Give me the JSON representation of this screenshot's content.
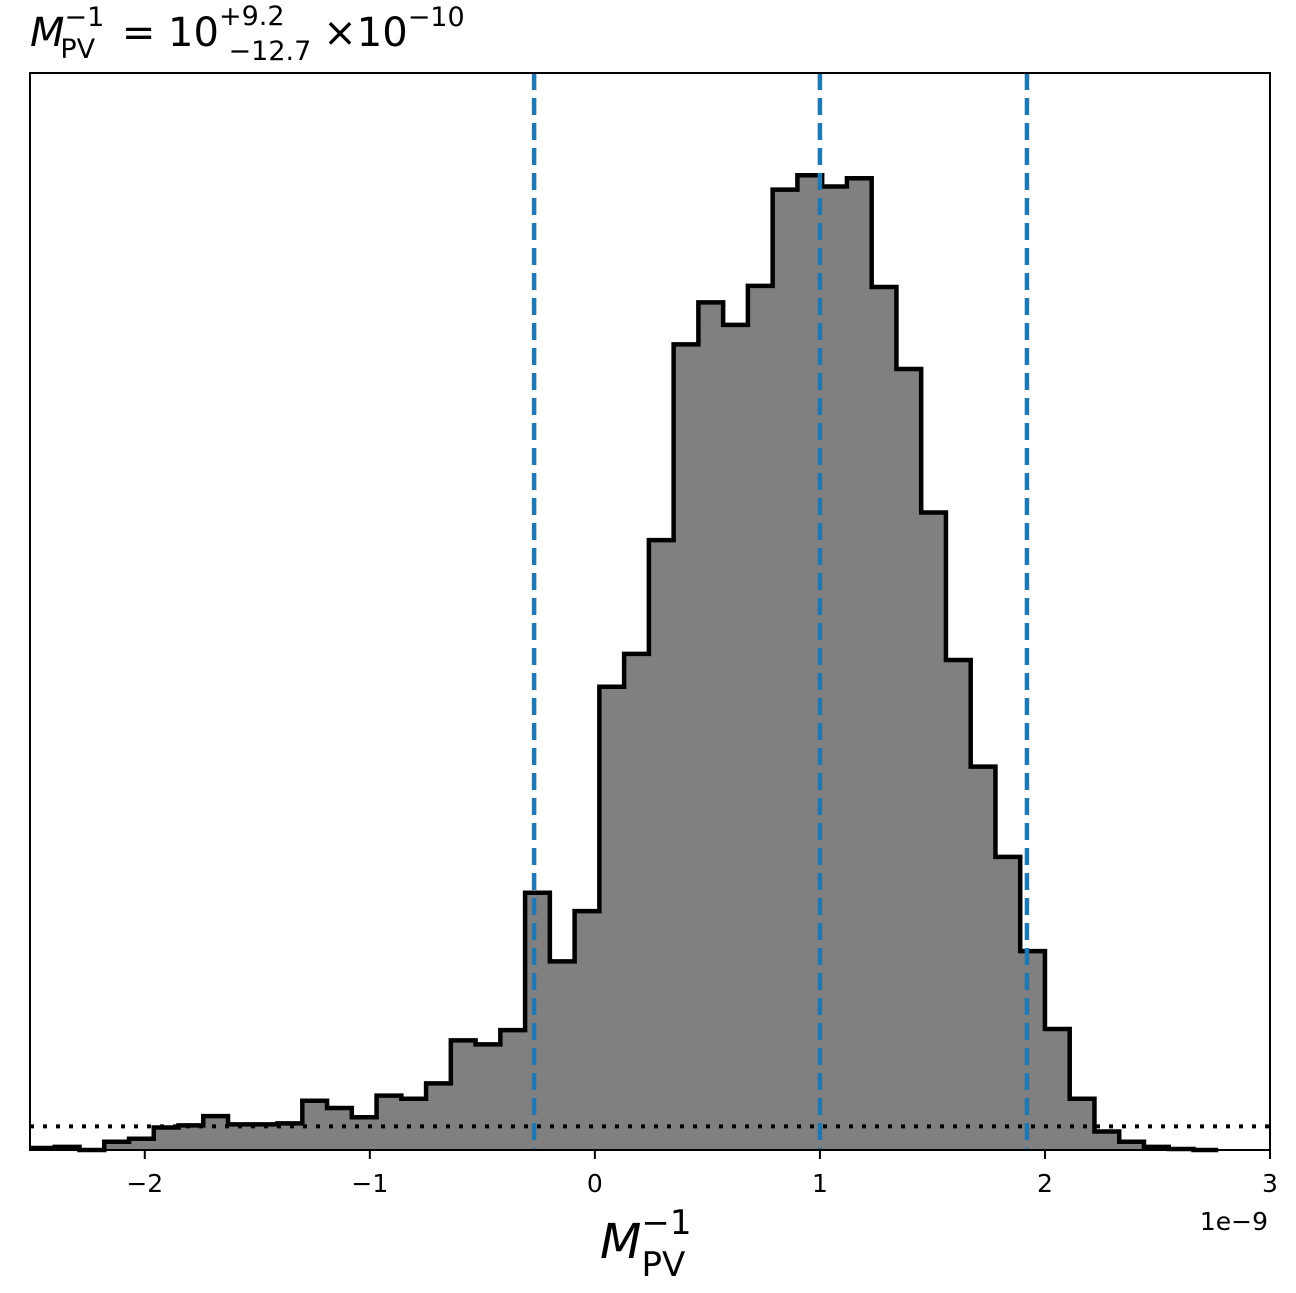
{
  "chart_data": {
    "type": "histogram",
    "title": {
      "base": "M",
      "base_sup": "−1",
      "base_sub": "PV",
      "equals": "=",
      "value": "10",
      "upper_err": "+9.2",
      "lower_err": "−12.7",
      "times": "×",
      "scale_base": "10",
      "scale_exp": "−10"
    },
    "xlabel": {
      "base": "M",
      "sup": "−1",
      "sub": "PV"
    },
    "offset_label": "1e−9",
    "xlim": [
      -2.51,
      3.0
    ],
    "ylim": [
      0,
      1.0
    ],
    "xticks": [
      {
        "value": -2,
        "label": "−2"
      },
      {
        "value": -1,
        "label": "−1"
      },
      {
        "value": 0,
        "label": "0"
      },
      {
        "value": 1,
        "label": "1"
      },
      {
        "value": 2,
        "label": "2"
      },
      {
        "value": 3,
        "label": "3"
      }
    ],
    "bin_edges": [
      -2.51,
      -2.4,
      -2.29,
      -2.18,
      -2.07,
      -1.96,
      -1.85,
      -1.74,
      -1.63,
      -1.52,
      -1.41,
      -1.3,
      -1.19,
      -1.08,
      -0.97,
      -0.86,
      -0.75,
      -0.64,
      -0.53,
      -0.42,
      -0.31,
      -0.2,
      -0.09,
      0.02,
      0.13,
      0.24,
      0.35,
      0.46,
      0.57,
      0.68,
      0.79,
      0.9,
      1.01,
      1.12,
      1.23,
      1.34,
      1.45,
      1.56,
      1.67,
      1.78,
      1.89,
      2.0,
      2.11,
      2.22,
      2.33,
      2.44,
      2.55,
      2.66,
      2.77
    ],
    "counts": [
      0.002,
      0.003,
      0.0,
      0.008,
      0.011,
      0.022,
      0.024,
      0.033,
      0.025,
      0.025,
      0.026,
      0.048,
      0.041,
      0.032,
      0.053,
      0.05,
      0.065,
      0.107,
      0.103,
      0.117,
      0.251,
      0.184,
      0.233,
      0.452,
      0.484,
      0.595,
      0.786,
      0.827,
      0.805,
      0.843,
      0.937,
      0.951,
      0.94,
      0.948,
      0.842,
      0.762,
      0.622,
      0.478,
      0.374,
      0.286,
      0.194,
      0.118,
      0.05,
      0.018,
      0.008,
      0.003,
      0.001,
      0.0
    ],
    "vertical_lines": [
      {
        "x": -0.27,
        "style": "dashed",
        "color": "#1f77b4"
      },
      {
        "x": 1.0,
        "style": "dashed",
        "color": "#1f77b4"
      },
      {
        "x": 1.92,
        "style": "dashed",
        "color": "#1f77b4"
      }
    ],
    "horizontal_line": {
      "y": 0.023,
      "style": "dotted",
      "color": "#000000"
    },
    "fill_color": "#808080",
    "edge_color": "#000000",
    "grid": false
  }
}
